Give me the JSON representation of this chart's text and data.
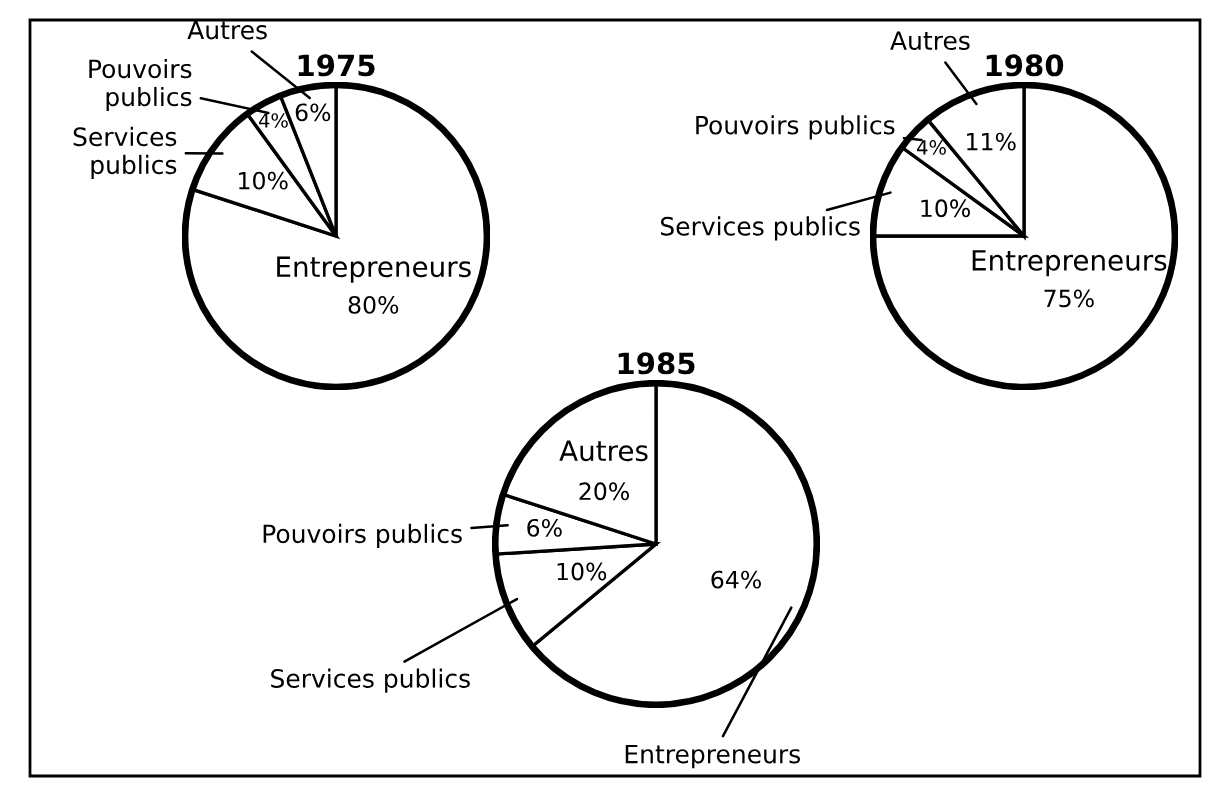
{
  "chart_data": [
    {
      "type": "pie",
      "title": "1975",
      "categories": [
        "Entrepreneurs",
        "Services\npublics",
        "Pouvoirs\npublics",
        "Autres"
      ],
      "values": [
        80,
        10,
        4,
        6
      ],
      "colors": [
        "#ffffff",
        "#ffffff",
        "#ffffff",
        "#ffffff"
      ],
      "value_labels": [
        "80%",
        "10%",
        "4%",
        "6%"
      ]
    },
    {
      "type": "pie",
      "title": "1980",
      "categories": [
        "Entrepreneurs",
        "Services publics",
        "Pouvoirs publics",
        "Autres"
      ],
      "values": [
        75,
        10,
        4,
        11
      ],
      "colors": [
        "#ffffff",
        "#ffffff",
        "#ffffff",
        "#ffffff"
      ],
      "value_labels": [
        "75%",
        "10%",
        "4%",
        "11%"
      ]
    },
    {
      "type": "pie",
      "title": "1985",
      "categories": [
        "Entrepreneurs",
        "Services publics",
        "Pouvoirs publics",
        "Autres"
      ],
      "values": [
        64,
        10,
        6,
        20
      ],
      "colors": [
        "#ffffff",
        "#ffffff",
        "#ffffff",
        "#ffffff"
      ],
      "value_labels": [
        "64%",
        "10%",
        "6%",
        "20%"
      ]
    }
  ]
}
